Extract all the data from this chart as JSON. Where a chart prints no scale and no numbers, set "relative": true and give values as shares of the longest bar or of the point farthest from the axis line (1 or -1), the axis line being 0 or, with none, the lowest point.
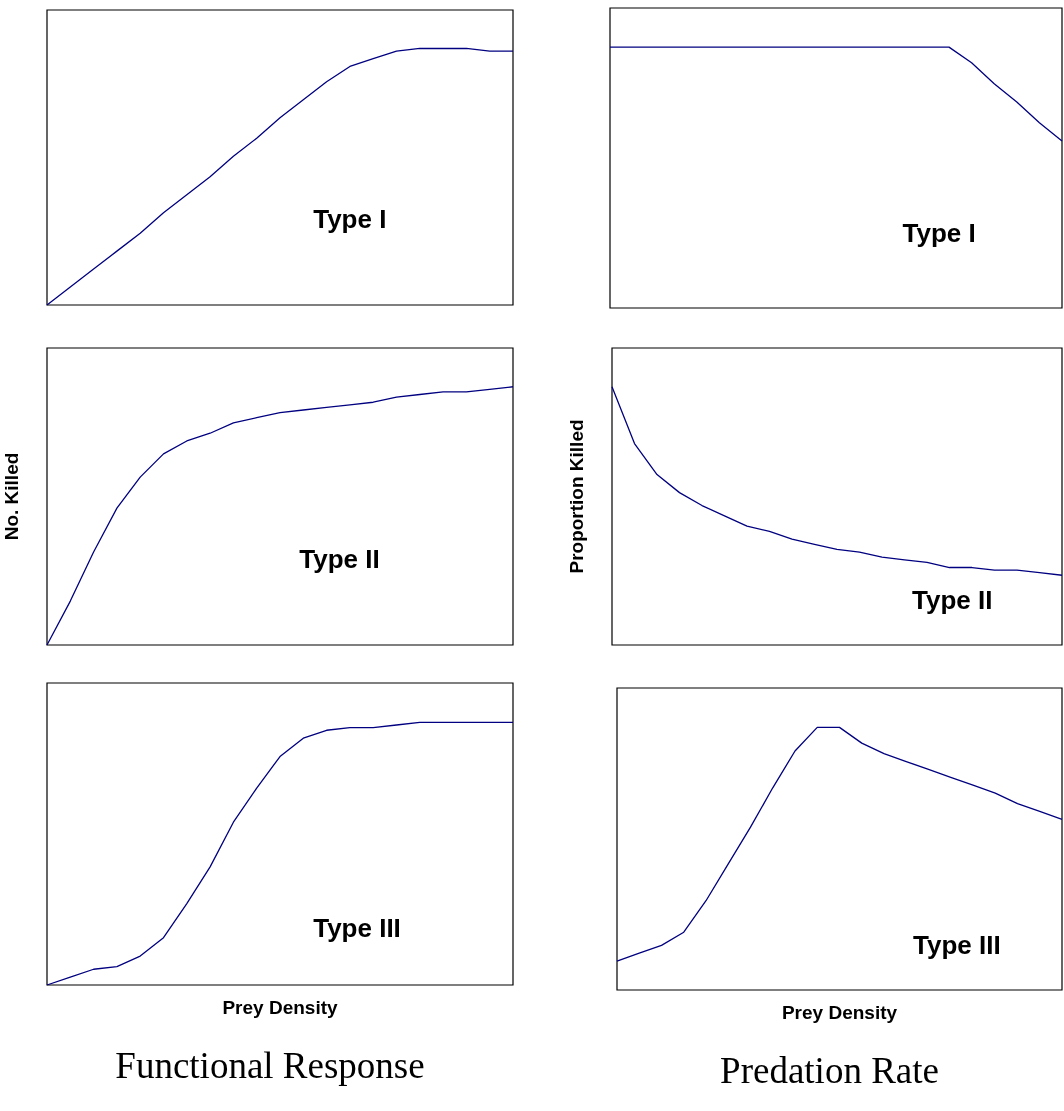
{
  "chart_data": [
    {
      "type": "line",
      "relative": true,
      "tick_labels": false,
      "marker": "none",
      "color": "#000080",
      "categories": [
        null,
        null,
        null,
        null,
        null,
        null,
        null,
        null,
        null,
        null,
        null,
        null,
        null,
        null,
        null,
        null,
        null,
        null,
        null,
        null,
        null
      ],
      "values": [
        0,
        0.07,
        0.14,
        0.21,
        0.28,
        0.36,
        0.43,
        0.5,
        0.58,
        0.65,
        0.73,
        0.8,
        0.87,
        0.93,
        0.96,
        0.99,
        1,
        1,
        1,
        0.99,
        0.99
      ],
      "annotations": [
        "Type I"
      ]
    },
    {
      "type": "line",
      "relative": true,
      "tick_labels": false,
      "marker": "none",
      "color": "#000080",
      "categories": [
        null,
        null,
        null,
        null,
        null,
        null,
        null,
        null,
        null,
        null,
        null,
        null,
        null,
        null,
        null,
        null,
        null,
        null,
        null,
        null,
        null
      ],
      "values": [
        1,
        1,
        1,
        1,
        1,
        1,
        1,
        1,
        1,
        1,
        1,
        1,
        1,
        1,
        1,
        1,
        0.94,
        0.86,
        0.79,
        0.71,
        0.64
      ],
      "annotations": [
        "Type I"
      ]
    },
    {
      "type": "line",
      "relative": true,
      "tick_labels": false,
      "marker": "none",
      "color": "#000080",
      "ylabel": "No. Killed",
      "categories": [
        null,
        null,
        null,
        null,
        null,
        null,
        null,
        null,
        null,
        null,
        null,
        null,
        null,
        null,
        null,
        null,
        null,
        null,
        null,
        null,
        null
      ],
      "values": [
        0,
        0.17,
        0.36,
        0.53,
        0.65,
        0.74,
        0.79,
        0.82,
        0.86,
        0.88,
        0.9,
        0.91,
        0.92,
        0.93,
        0.94,
        0.96,
        0.97,
        0.98,
        0.98,
        0.99,
        1
      ],
      "annotations": [
        "Type II"
      ]
    },
    {
      "type": "line",
      "relative": true,
      "tick_labels": false,
      "marker": "none",
      "color": "#000080",
      "ylabel": "Proportion Killed",
      "categories": [
        null,
        null,
        null,
        null,
        null,
        null,
        null,
        null,
        null,
        null,
        null,
        null,
        null,
        null,
        null,
        null,
        null,
        null,
        null,
        null,
        null
      ],
      "values": [
        1,
        0.78,
        0.66,
        0.59,
        0.54,
        0.5,
        0.46,
        0.44,
        0.41,
        0.39,
        0.37,
        0.36,
        0.34,
        0.33,
        0.32,
        0.3,
        0.3,
        0.29,
        0.29,
        0.28,
        0.27
      ],
      "annotations": [
        "Type II"
      ]
    },
    {
      "type": "line",
      "relative": true,
      "tick_labels": false,
      "marker": "none",
      "color": "#000080",
      "xlabel": "Prey Density",
      "categories": [
        null,
        null,
        null,
        null,
        null,
        null,
        null,
        null,
        null,
        null,
        null,
        null,
        null,
        null,
        null,
        null,
        null,
        null,
        null,
        null,
        null
      ],
      "values": [
        0,
        0.03,
        0.06,
        0.07,
        0.11,
        0.18,
        0.31,
        0.45,
        0.62,
        0.75,
        0.87,
        0.94,
        0.97,
        0.98,
        0.98,
        0.99,
        1,
        1,
        1,
        1,
        1
      ],
      "annotations": [
        "Type III",
        "Functional Response"
      ]
    },
    {
      "type": "line",
      "relative": true,
      "tick_labels": false,
      "marker": "none",
      "color": "#000080",
      "xlabel": "Prey Density",
      "categories": [
        null,
        null,
        null,
        null,
        null,
        null,
        null,
        null,
        null,
        null,
        null,
        null,
        null,
        null,
        null,
        null,
        null,
        null,
        null,
        null,
        null
      ],
      "values": [
        0.11,
        0.14,
        0.17,
        0.22,
        0.34,
        0.48,
        0.62,
        0.77,
        0.91,
        1,
        1,
        0.94,
        0.9,
        0.87,
        0.84,
        0.81,
        0.78,
        0.75,
        0.71,
        0.68,
        0.65
      ],
      "annotations": [
        "Type III",
        "Predation Rate"
      ]
    }
  ]
}
